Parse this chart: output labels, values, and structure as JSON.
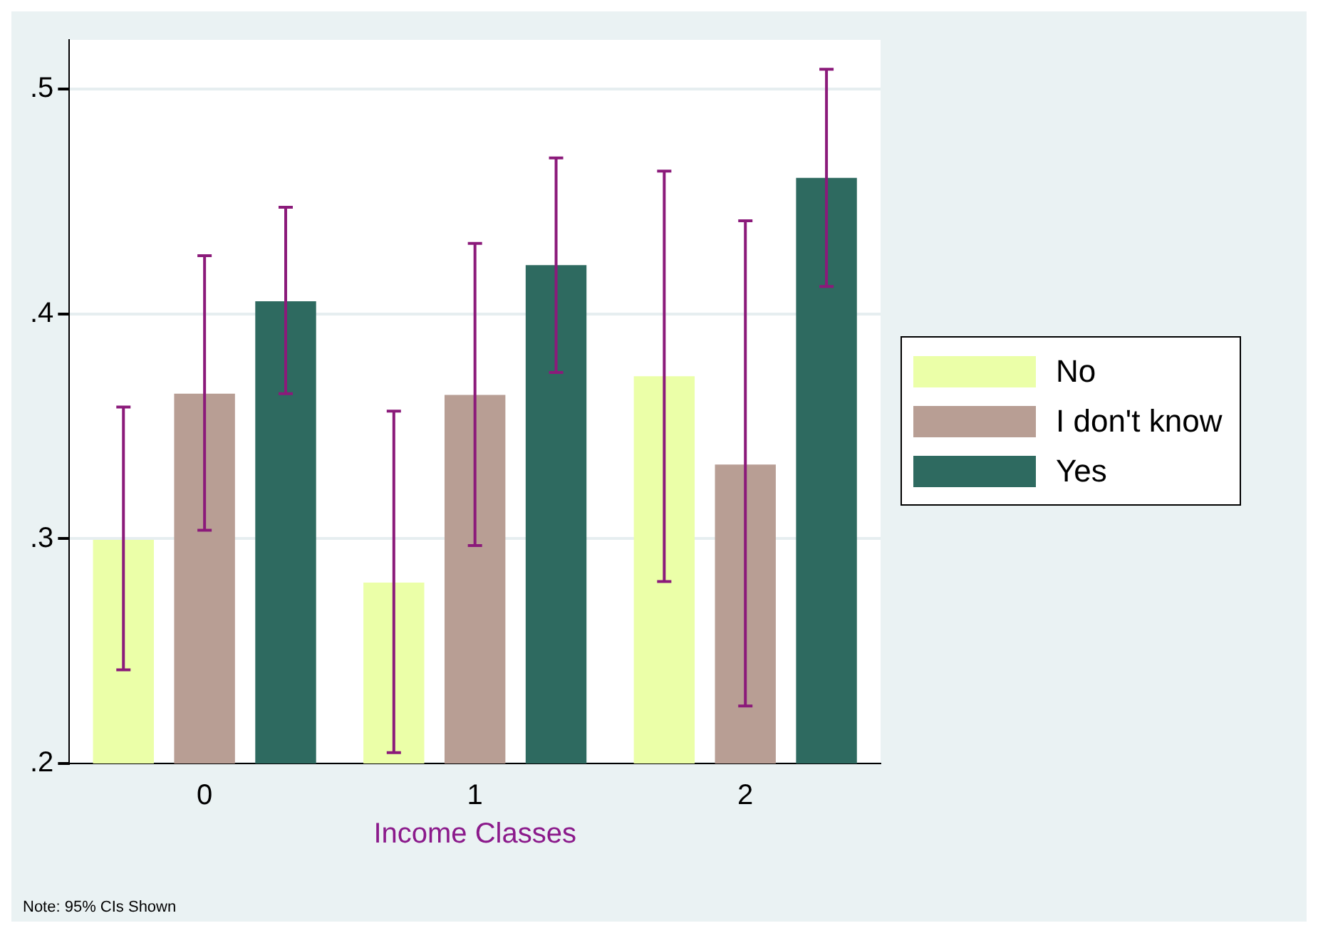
{
  "chart_data": {
    "type": "bar",
    "xlabel": "Income Classes",
    "annotations": [
      "Note:  95% CIs Shown"
    ],
    "categories": [
      "0",
      "1",
      "2"
    ],
    "series": [
      {
        "name": "No",
        "color": "#ebffa8",
        "values": [
          0.2995,
          0.2805,
          0.3723
        ],
        "errors": [
          [
            0.2417,
            0.3586
          ],
          [
            0.2048,
            0.3568
          ],
          [
            0.281,
            0.4636
          ]
        ]
      },
      {
        "name": "I don't know",
        "color": "#b89e94",
        "values": [
          0.3646,
          0.364,
          0.333
        ],
        "errors": [
          [
            0.3038,
            0.426
          ],
          [
            0.297,
            0.4314
          ],
          [
            0.2256,
            0.4415
          ]
        ]
      },
      {
        "name": "Yes",
        "color": "#2e6a60",
        "values": [
          0.4057,
          0.4218,
          0.4606
        ],
        "errors": [
          [
            0.3646,
            0.4475
          ],
          [
            0.374,
            0.4695
          ],
          [
            0.4123,
            0.5089
          ]
        ]
      }
    ],
    "ylim": [
      0.2,
      0.522
    ],
    "yticks": [
      {
        "value": 0.2,
        "label": ".2"
      },
      {
        "value": 0.3,
        "label": ".3"
      },
      {
        "value": 0.4,
        "label": ".4"
      },
      {
        "value": 0.5,
        "label": ".5"
      }
    ],
    "grid": "y",
    "legend": "right"
  }
}
